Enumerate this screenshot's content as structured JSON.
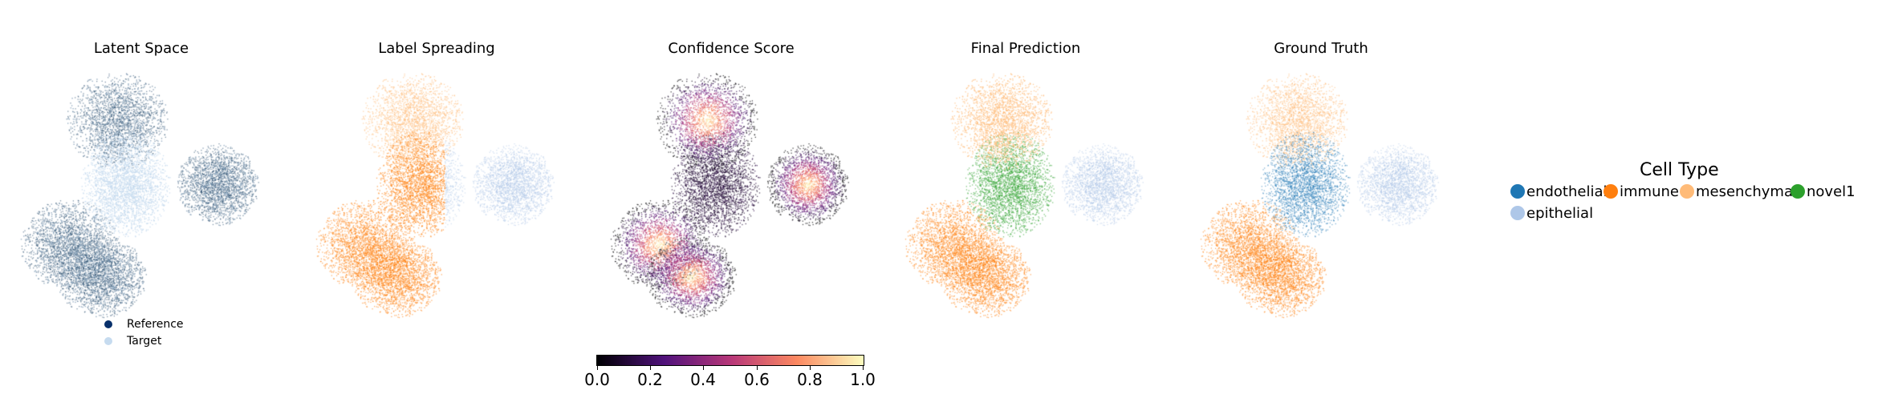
{
  "chart_data": [
    {
      "type": "scatter",
      "title": "Latent Space",
      "legend": {
        "position": "bottom",
        "entries": [
          {
            "name": "Reference",
            "color": "#08306b"
          },
          {
            "name": "Target",
            "color": "#c6dbef"
          }
        ]
      },
      "series": [
        {
          "name": "Reference",
          "color": "#1d4466"
        },
        {
          "name": "Target",
          "color": "#c6dbef"
        }
      ]
    },
    {
      "type": "scatter",
      "title": "Label Spreading",
      "series": [
        {
          "name": "mesenchymal",
          "color": "#ffbb78"
        },
        {
          "name": "immune",
          "color": "#ff7f0e"
        },
        {
          "name": "epithelial",
          "color": "#aec7e8"
        }
      ]
    },
    {
      "type": "scatter",
      "title": "Confidence Score",
      "colormap": "magma",
      "colorbar": {
        "range": [
          0.0,
          1.0
        ],
        "ticks": [
          "0.0",
          "0.2",
          "0.4",
          "0.6",
          "0.8",
          "1.0"
        ]
      }
    },
    {
      "type": "scatter",
      "title": "Final Prediction",
      "series": [
        {
          "name": "mesenchymal",
          "color": "#ffbb78"
        },
        {
          "name": "novel1",
          "color": "#2ca02c"
        },
        {
          "name": "epithelial",
          "color": "#aec7e8"
        },
        {
          "name": "immune",
          "color": "#ff7f0e"
        }
      ]
    },
    {
      "type": "scatter",
      "title": "Ground Truth",
      "series": [
        {
          "name": "mesenchymal",
          "color": "#ffbb78"
        },
        {
          "name": "endothelial",
          "color": "#1f77b4"
        },
        {
          "name": "epithelial",
          "color": "#aec7e8"
        },
        {
          "name": "immune",
          "color": "#ff7f0e"
        }
      ]
    }
  ],
  "legend": {
    "title": "Cell Type",
    "position": "right",
    "entries": [
      {
        "name": "endothelial",
        "color": "#1f77b4"
      },
      {
        "name": "immune",
        "color": "#ff7f0e"
      },
      {
        "name": "mesenchymal",
        "color": "#ffbb78"
      },
      {
        "name": "novel1",
        "color": "#2ca02c"
      },
      {
        "name": "epithelial",
        "color": "#aec7e8"
      }
    ]
  }
}
